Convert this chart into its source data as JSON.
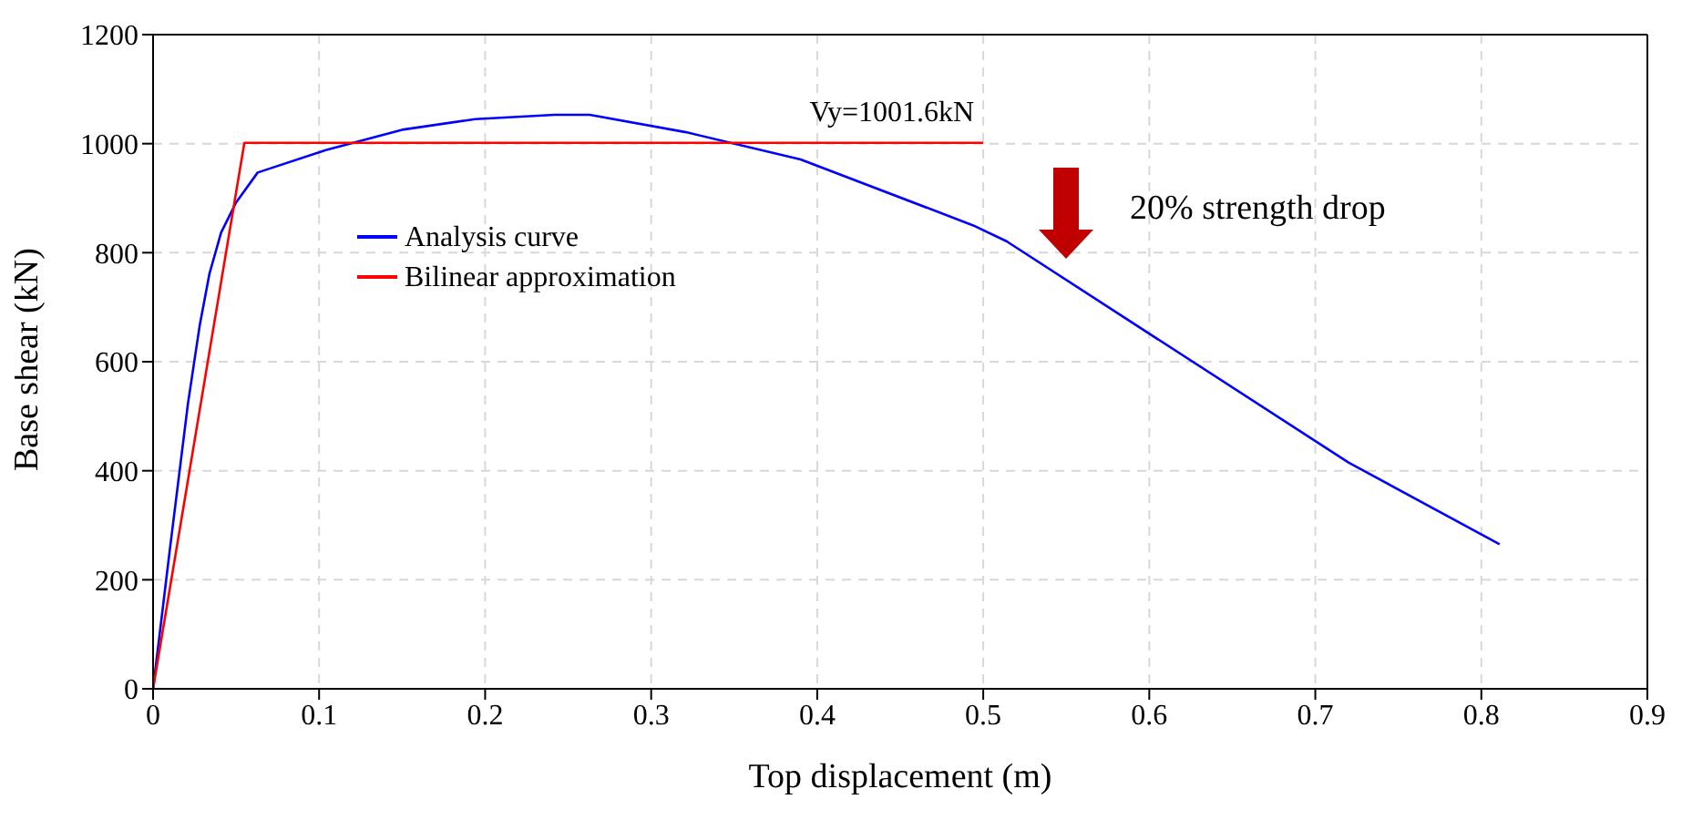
{
  "chart_data": {
    "type": "line",
    "xlabel": "Top displacement (m)",
    "ylabel": "Base shear (kN)",
    "series": [
      {
        "name": "Analysis curve",
        "color": "#0000ff",
        "x": [
          0,
          0.01,
          0.021,
          0.028,
          0.034,
          0.041,
          0.05,
          0.063,
          0.104,
          0.151,
          0.194,
          0.242,
          0.263,
          0.321,
          0.39,
          0.494,
          0.514,
          0.72,
          0.811
        ],
        "values": [
          0,
          253,
          523,
          665,
          762,
          837,
          892,
          947,
          988,
          1026,
          1045,
          1053,
          1053,
          1021,
          971,
          850,
          821,
          415,
          265
        ]
      },
      {
        "name": "Bilinear approximation",
        "color": "#ff0000",
        "x": [
          0,
          0.055,
          0.5
        ],
        "values": [
          0,
          1001.6,
          1001.6
        ]
      }
    ],
    "annotations": [
      {
        "text": "Vy=1001.6kN",
        "x": 0.445,
        "y": 1001.6
      },
      "20% strength drop"
    ],
    "xlim": [
      0,
      0.9
    ],
    "xticks": [
      0,
      0.1,
      0.2,
      0.3,
      0.4,
      0.5,
      0.6,
      0.7,
      0.8,
      0.9
    ],
    "ylim": [
      0,
      1200
    ],
    "yticks": [
      0,
      200,
      400,
      600,
      800,
      1000,
      1200
    ],
    "grid": true,
    "legend": "left",
    "marker": "none",
    "line_style": "solid"
  }
}
